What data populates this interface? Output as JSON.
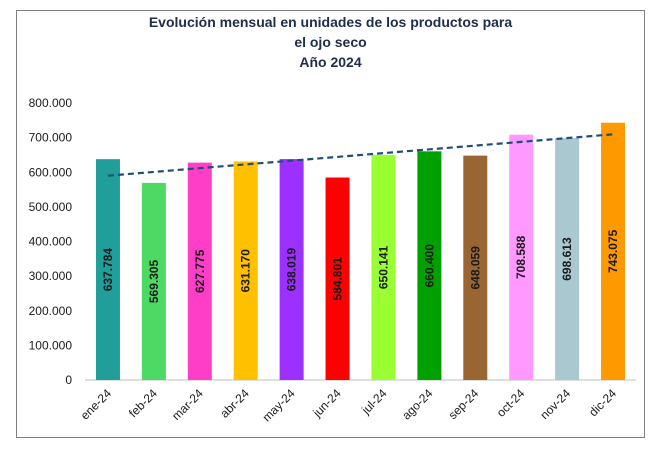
{
  "chart_data": {
    "type": "bar",
    "title_lines": [
      "Evolución mensual en unidades  de los productos para",
      "el ojo seco",
      "Año 2024"
    ],
    "categories": [
      "ene-24",
      "feb-24",
      "mar-24",
      "abr-24",
      "may-24",
      "jun-24",
      "jul-24",
      "ago-24",
      "sep-24",
      "oct-24",
      "nov-24",
      "dic-24"
    ],
    "values": [
      637784,
      569305,
      627775,
      631170,
      638019,
      584801,
      650141,
      660400,
      648059,
      708588,
      698613,
      743075
    ],
    "value_labels": [
      "637.784",
      "569.305",
      "627.775",
      "631.170",
      "638.019",
      "584.801",
      "650.141",
      "660.400",
      "648.059",
      "708.588",
      "698.613",
      "743.075"
    ],
    "bar_colors": [
      "#1f9e9a",
      "#4cd964",
      "#ff3ec8",
      "#ffc000",
      "#9b30ff",
      "#ff0000",
      "#99ff33",
      "#00a000",
      "#996633",
      "#ff99ff",
      "#a9c8d0",
      "#ff9900"
    ],
    "ylim": [
      0,
      800000
    ],
    "yticks": [
      0,
      100000,
      200000,
      300000,
      400000,
      500000,
      600000,
      700000,
      800000
    ],
    "ytick_labels": [
      "0",
      "100.000",
      "200.000",
      "300.000",
      "400.000",
      "500.000",
      "600.000",
      "700.000",
      "800.000"
    ],
    "trendline": {
      "style": "dashed",
      "color": "#1f4e79"
    },
    "grid": false,
    "legend": "none"
  }
}
